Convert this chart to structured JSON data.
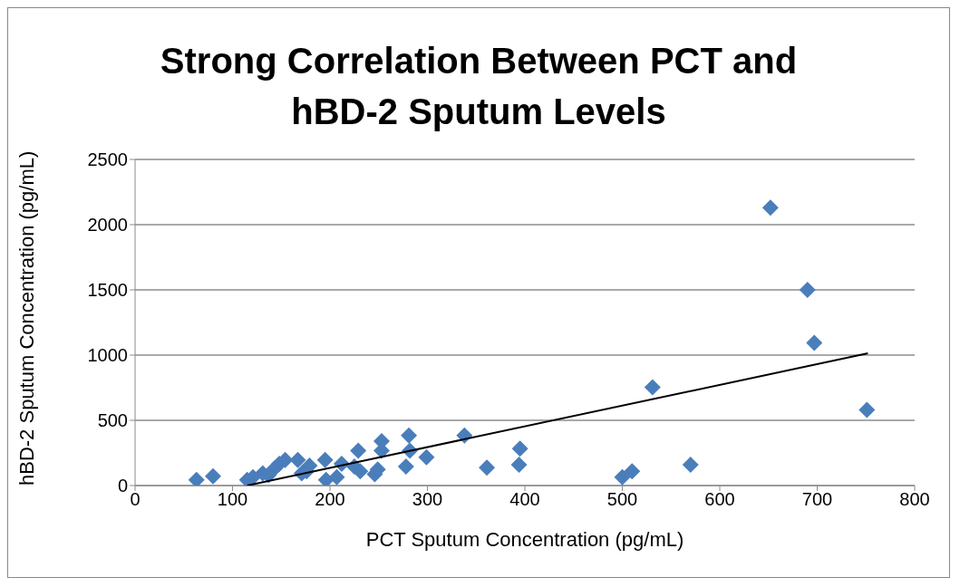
{
  "chart_data": {
    "type": "scatter",
    "title": "Strong Correlation Between PCT and hBD-2 Sputum Levels",
    "xlabel": "PCT Sputum Concentration (pg/mL)",
    "ylabel": "hBD-2 Sputum Concentration (pg/mL)",
    "xlim": [
      0,
      800
    ],
    "xticks": [
      0,
      100,
      200,
      300,
      400,
      500,
      600,
      700,
      800
    ],
    "ylim": [
      0,
      2500
    ],
    "yticks": [
      0,
      500,
      1000,
      1500,
      2000,
      2500
    ],
    "grid": "y",
    "series": [
      {
        "marker": "diamond",
        "color": "#4a7ebb",
        "x": [
          63,
          80,
          115,
          121,
          131,
          137,
          143,
          148,
          154,
          167,
          171,
          176,
          179,
          195,
          196,
          207,
          212,
          225,
          229,
          231,
          246,
          249,
          253,
          253,
          278,
          281,
          282,
          299,
          338,
          361,
          394,
          395,
          500,
          510,
          531,
          570,
          652,
          690,
          697,
          751
        ],
        "values": [
          43,
          72,
          43,
          65,
          94,
          80,
          130,
          167,
          196,
          196,
          94,
          110,
          152,
          196,
          43,
          65,
          167,
          145,
          268,
          109,
          87,
          123,
          268,
          340,
          145,
          384,
          268,
          217,
          384,
          138,
          159,
          283,
          65,
          109,
          754,
          159,
          2130,
          1500,
          1094,
          580
        ]
      },
      {
        "type": "line",
        "marker": "none",
        "color": "#000000",
        "x": [
          115,
          752
        ],
        "values": [
          0,
          1014
        ]
      }
    ]
  }
}
